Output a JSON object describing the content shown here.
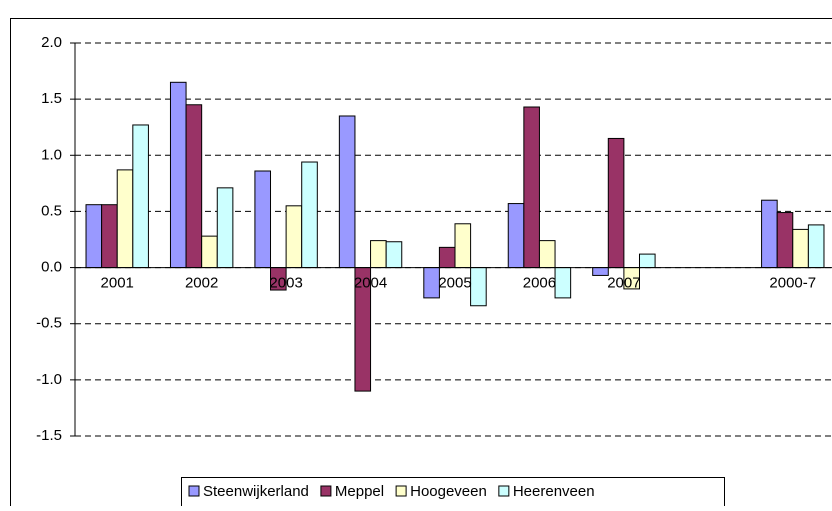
{
  "chart_data": {
    "type": "bar",
    "categories": [
      "2001",
      "2002",
      "2003",
      "2004",
      "2005",
      "2006",
      "2007",
      null,
      "2000-7"
    ],
    "series": [
      {
        "name": "Steenwijkerland",
        "color": "#9999ff",
        "values": [
          0.56,
          1.65,
          0.86,
          1.35,
          -0.27,
          0.57,
          -0.07,
          null,
          0.6
        ]
      },
      {
        "name": "Meppel",
        "color": "#993366",
        "values": [
          0.56,
          1.45,
          -0.2,
          -1.1,
          0.18,
          1.43,
          1.15,
          null,
          0.49
        ]
      },
      {
        "name": "Hoogeveen",
        "color": "#ffffcc",
        "values": [
          0.87,
          0.28,
          0.55,
          0.24,
          0.39,
          0.24,
          -0.19,
          null,
          0.34
        ]
      },
      {
        "name": "Heerenveen",
        "color": "#ccffff",
        "values": [
          1.27,
          0.71,
          0.94,
          0.23,
          -0.34,
          -0.27,
          0.12,
          null,
          0.38
        ]
      }
    ],
    "ylim": [
      -1.5,
      2.0
    ],
    "yticks": [
      {
        "value": -1.5,
        "label": "-1.5"
      },
      {
        "value": -1.0,
        "label": "-1.0"
      },
      {
        "value": -0.5,
        "label": "-0.5"
      },
      {
        "value": 0,
        "label": "0.0"
      },
      {
        "value": 0.5,
        "label": "0.5"
      },
      {
        "value": 1.0,
        "label": "1.0"
      },
      {
        "value": 1.5,
        "label": "1.5"
      },
      {
        "value": 2.0,
        "label": "2.0"
      }
    ],
    "grid": true,
    "legend": "bottom"
  }
}
